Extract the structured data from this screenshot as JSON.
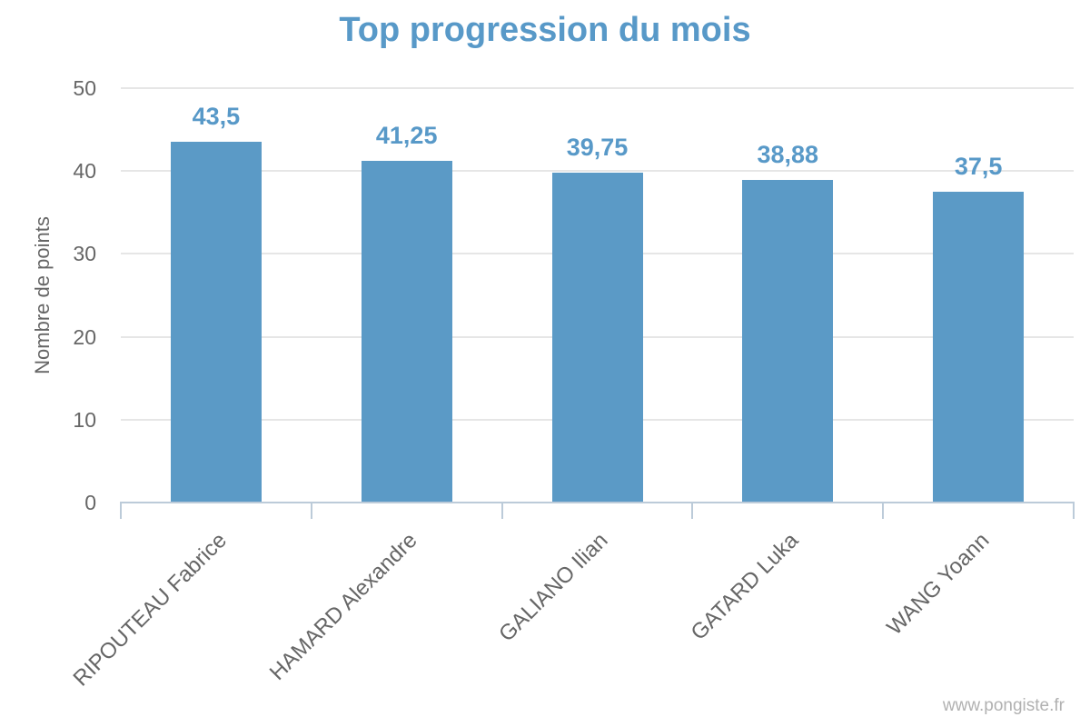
{
  "chart_data": {
    "type": "bar",
    "title": "Top progression du mois",
    "ylabel": "Nombre de points",
    "xlabel": "",
    "categories": [
      "RIPOUTEAU Fabrice",
      "HAMARD Alexandre",
      "GALIANO Ilian",
      "GATARD Luka",
      "WANG Yoann"
    ],
    "values": [
      43.5,
      41.25,
      39.75,
      38.88,
      37.5
    ],
    "value_labels": [
      "43,5",
      "41,25",
      "39,75",
      "38,88",
      "37,5"
    ],
    "ylim": [
      0,
      50
    ],
    "yticks": [
      0,
      10,
      20,
      30,
      40,
      50
    ],
    "grid": true,
    "legend": false
  },
  "watermark": "www.pongiste.fr",
  "colors": {
    "accent": "#5899c8",
    "bar": "#5b9ac6",
    "grid": "#e6e6e6",
    "axis": "#bccbd9",
    "tick_label": "#666666",
    "watermark": "#b1b1b1"
  }
}
